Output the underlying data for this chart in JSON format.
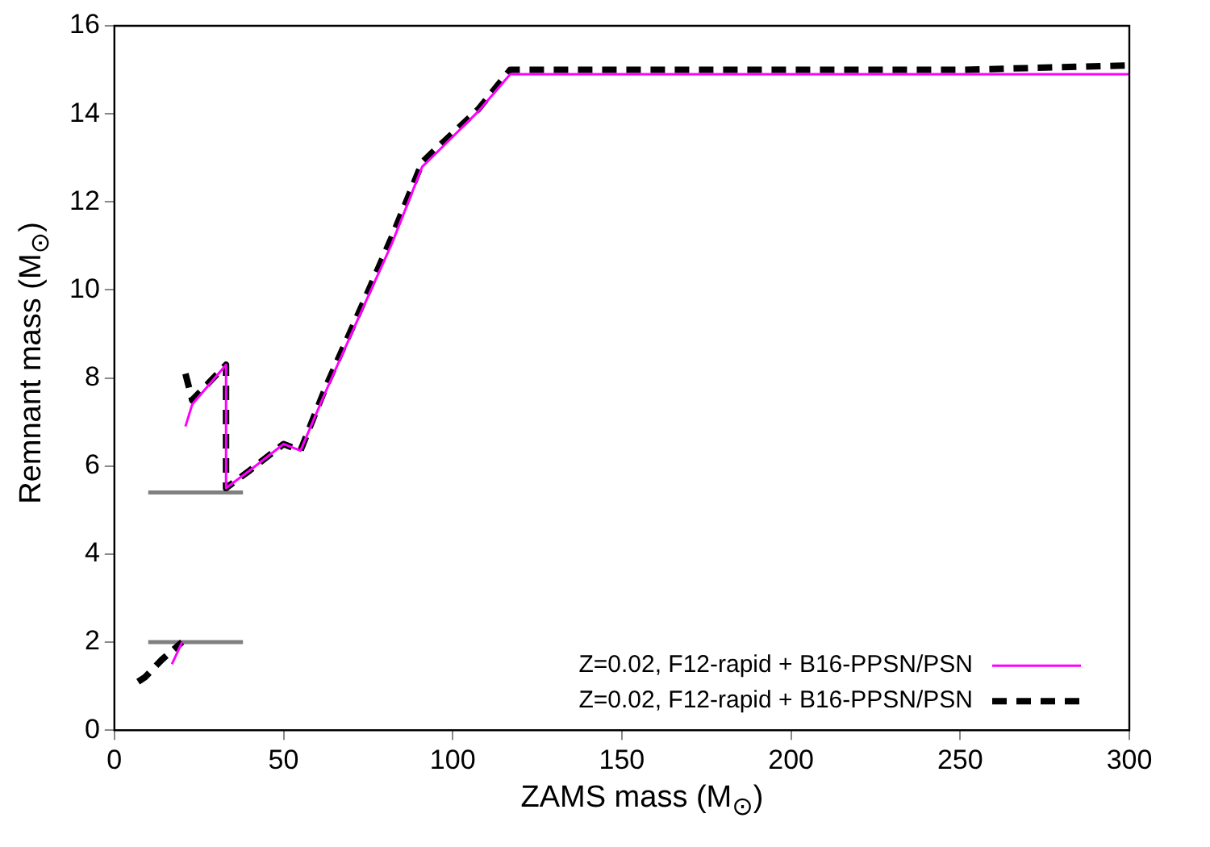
{
  "chart_data": {
    "type": "line",
    "xlabel": "ZAMS mass (M$_{⊙}$)",
    "ylabel": "Remnant mass (M$_{⊙}$)",
    "xlim": [
      0,
      300
    ],
    "xticks": [
      0,
      50,
      100,
      150,
      200,
      250,
      300
    ],
    "ylim": [
      0,
      16
    ],
    "yticks": [
      0,
      2,
      4,
      6,
      8,
      10,
      12,
      14,
      16
    ],
    "grid": false,
    "legend": "bottom right",
    "marker": "none",
    "series": [
      {
        "name": "Z=0.02, F12-rapid + B16-PPSN/PSN",
        "color": "#ff00ff",
        "line_style": "solid",
        "x": [
          17,
          20,
          20.5,
          21,
          23,
          33,
          33,
          40,
          50,
          55,
          62.5,
          73.5,
          82,
          91,
          95,
          107.5,
          117,
          150,
          200,
          250,
          300
        ],
        "values": [
          1.5,
          2.0,
          null,
          6.9,
          7.4,
          8.3,
          5.5,
          5.9,
          6.5,
          6.35,
          7.7,
          9.6,
          11.05,
          12.8,
          13.1,
          14.05,
          14.9,
          14.9,
          14.9,
          14.9,
          14.9
        ]
      },
      {
        "name": "Z=0.02, F12-rapid + B16-PPSN/PSN",
        "color": "#000000",
        "line_style": "dashed",
        "x": [
          7,
          9,
          14,
          20,
          20.5,
          21,
          23,
          33,
          33,
          40,
          50,
          55,
          62.5,
          73.5,
          82,
          91,
          95,
          107.5,
          117,
          150,
          200,
          250,
          300
        ],
        "values": [
          1.1,
          1.2,
          1.6,
          2.0,
          null,
          8.1,
          7.5,
          8.3,
          5.5,
          5.9,
          6.5,
          6.35,
          7.8,
          9.7,
          11.2,
          12.9,
          13.2,
          14.1,
          15.0,
          15.0,
          15.0,
          15.0,
          15.1
        ]
      },
      {
        "color": "#808080",
        "line_style": "solid",
        "x": [
          10,
          38
        ],
        "values": [
          5.4,
          5.4
        ]
      },
      {
        "color": "#808080",
        "line_style": "solid",
        "x": [
          10,
          38
        ],
        "values": [
          2.0,
          2.0
        ]
      }
    ]
  }
}
